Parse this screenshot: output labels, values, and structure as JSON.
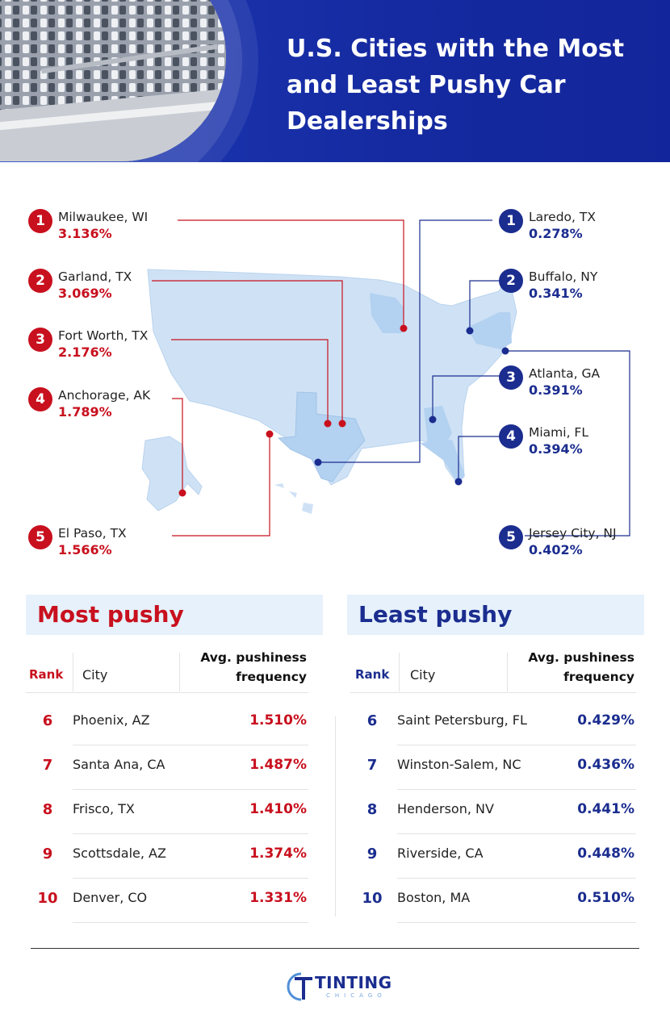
{
  "header": {
    "title": "U.S. Cities with the Most and Least Pushy Car Dealerships"
  },
  "colors": {
    "most_pushy": "#c8101e",
    "least_pushy": "#1b2d8f",
    "header_bg": "#1d38b6",
    "map_fill": "#cfe2f5",
    "panel_bg": "#e6f1fb"
  },
  "map_callouts": {
    "most": [
      {
        "rank": "1",
        "city": "Milwaukee, WI",
        "value": "3.136%"
      },
      {
        "rank": "2",
        "city": "Garland, TX",
        "value": "3.069%"
      },
      {
        "rank": "3",
        "city": "Fort Worth, TX",
        "value": "2.176%"
      },
      {
        "rank": "4",
        "city": "Anchorage, AK",
        "value": "1.789%"
      },
      {
        "rank": "5",
        "city": "El Paso, TX",
        "value": "1.566%"
      }
    ],
    "least": [
      {
        "rank": "1",
        "city": "Laredo, TX",
        "value": "0.278%"
      },
      {
        "rank": "2",
        "city": "Buffalo, NY",
        "value": "0.341%"
      },
      {
        "rank": "3",
        "city": "Atlanta, GA",
        "value": "0.391%"
      },
      {
        "rank": "4",
        "city": "Miami, FL",
        "value": "0.394%"
      },
      {
        "rank": "5",
        "city": "Jersey City, NJ",
        "value": "0.402%"
      }
    ]
  },
  "tables": {
    "most": {
      "heading": "Most pushy",
      "col_rank": "Rank",
      "col_city": "City",
      "col_freq_line1": "Avg. pushiness",
      "col_freq_line2": "frequency",
      "rows": [
        {
          "rank": "6",
          "city": "Phoenix, AZ",
          "value": "1.510%"
        },
        {
          "rank": "7",
          "city": "Santa Ana, CA",
          "value": "1.487%"
        },
        {
          "rank": "8",
          "city": "Frisco, TX",
          "value": "1.410%"
        },
        {
          "rank": "9",
          "city": "Scottsdale, AZ",
          "value": "1.374%"
        },
        {
          "rank": "10",
          "city": "Denver, CO",
          "value": "1.331%"
        }
      ]
    },
    "least": {
      "heading": "Least pushy",
      "col_rank": "Rank",
      "col_city": "City",
      "col_freq_line1": "Avg. pushiness",
      "col_freq_line2": "frequency",
      "rows": [
        {
          "rank": "6",
          "city": "Saint Petersburg, FL",
          "value": "0.429%"
        },
        {
          "rank": "7",
          "city": "Winston-Salem, NC",
          "value": "0.436%"
        },
        {
          "rank": "8",
          "city": "Henderson, NV",
          "value": "0.441%"
        },
        {
          "rank": "9",
          "city": "Riverside, CA",
          "value": "0.448%"
        },
        {
          "rank": "10",
          "city": "Boston, MA",
          "value": "0.510%"
        }
      ]
    }
  },
  "footer": {
    "logo_main": "TINTING",
    "logo_sub": "CHICAGO"
  },
  "chart_data": {
    "type": "table",
    "title": "U.S. Cities with the Most and Least Pushy Car Dealerships",
    "ylabel": "Avg. pushiness frequency",
    "series": [
      {
        "name": "Most pushy",
        "categories": [
          "Milwaukee, WI",
          "Garland, TX",
          "Fort Worth, TX",
          "Anchorage, AK",
          "El Paso, TX",
          "Phoenix, AZ",
          "Santa Ana, CA",
          "Frisco, TX",
          "Scottsdale, AZ",
          "Denver, CO"
        ],
        "values": [
          3.136,
          3.069,
          2.176,
          1.789,
          1.566,
          1.51,
          1.487,
          1.41,
          1.374,
          1.331
        ]
      },
      {
        "name": "Least pushy",
        "categories": [
          "Laredo, TX",
          "Buffalo, NY",
          "Atlanta, GA",
          "Miami, FL",
          "Jersey City, NJ",
          "Saint Petersburg, FL",
          "Winston-Salem, NC",
          "Henderson, NV",
          "Riverside, CA",
          "Boston, MA"
        ],
        "values": [
          0.278,
          0.341,
          0.391,
          0.394,
          0.402,
          0.429,
          0.436,
          0.441,
          0.448,
          0.51
        ]
      }
    ]
  }
}
